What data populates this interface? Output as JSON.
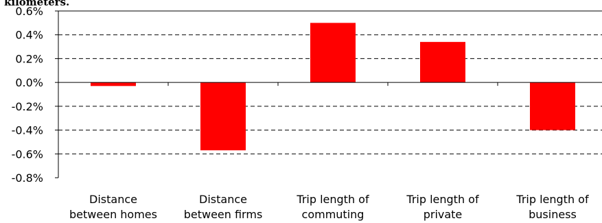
{
  "caption_fragment": "kilometers.",
  "colors": {
    "bar": "#ff0000",
    "axis": "#000000",
    "grid": "#000000"
  },
  "chart_data": {
    "type": "bar",
    "categories": [
      [
        "Distance",
        "between homes"
      ],
      [
        "Distance",
        "between firms"
      ],
      [
        "Trip length of",
        "commuting"
      ],
      [
        "Trip length of",
        "private"
      ],
      [
        "Trip length of",
        "business"
      ]
    ],
    "values": [
      -0.03,
      -0.57,
      0.5,
      0.34,
      -0.4
    ],
    "ylim": [
      -0.8,
      0.6
    ],
    "yticks": [
      0.6,
      0.4,
      0.2,
      0.0,
      -0.2,
      -0.4,
      -0.6,
      -0.8
    ],
    "ytick_labels": [
      "0.6%",
      "0.4%",
      "0.2%",
      "0.0%",
      "-0.2%",
      "-0.4%",
      "-0.6%",
      "-0.8%"
    ],
    "grid": "horizontal dashed",
    "legend": "none",
    "title": "",
    "xlabel": "",
    "ylabel": ""
  }
}
